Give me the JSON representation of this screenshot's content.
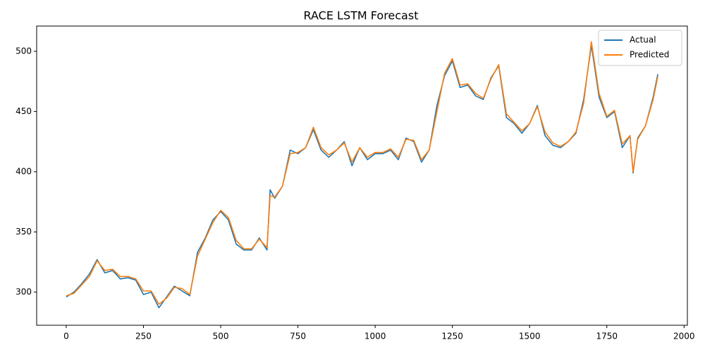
{
  "chart_data": {
    "type": "line",
    "title": "RACE LSTM Forecast",
    "x": [
      0,
      25,
      50,
      75,
      100,
      125,
      150,
      175,
      200,
      225,
      250,
      275,
      300,
      325,
      350,
      375,
      400,
      425,
      450,
      475,
      500,
      525,
      550,
      575,
      600,
      625,
      650,
      660,
      675,
      700,
      725,
      750,
      775,
      800,
      825,
      850,
      875,
      900,
      925,
      950,
      975,
      1000,
      1025,
      1050,
      1075,
      1100,
      1125,
      1150,
      1175,
      1200,
      1225,
      1250,
      1275,
      1300,
      1325,
      1350,
      1375,
      1400,
      1425,
      1450,
      1475,
      1500,
      1525,
      1550,
      1575,
      1600,
      1625,
      1650,
      1675,
      1700,
      1725,
      1750,
      1775,
      1800,
      1825,
      1835,
      1850,
      1875,
      1900,
      1915
    ],
    "series": [
      {
        "name": "Actual",
        "color": "#1f77b4",
        "values": [
          296,
          300,
          307,
          315,
          327,
          316,
          318,
          311,
          312,
          310,
          298,
          300,
          287,
          296,
          305,
          301,
          297,
          333,
          345,
          360,
          367,
          360,
          340,
          335,
          335,
          345,
          335,
          385,
          378,
          388,
          418,
          415,
          420,
          435,
          418,
          412,
          418,
          425,
          405,
          420,
          410,
          415,
          415,
          418,
          410,
          428,
          425,
          408,
          418,
          455,
          480,
          492,
          470,
          472,
          463,
          460,
          478,
          488,
          445,
          440,
          432,
          440,
          455,
          430,
          422,
          420,
          425,
          432,
          460,
          505,
          462,
          445,
          450,
          420,
          430,
          399,
          428,
          438,
          462,
          481
        ]
      },
      {
        "name": "Predicted",
        "color": "#ff7f0e",
        "values": [
          297,
          299,
          306,
          313,
          326,
          318,
          319,
          313,
          313,
          311,
          301,
          301,
          290,
          295,
          304,
          303,
          298,
          330,
          344,
          358,
          368,
          362,
          343,
          336,
          336,
          344,
          337,
          380,
          379,
          388,
          415,
          416,
          420,
          437,
          420,
          414,
          418,
          424,
          408,
          420,
          412,
          416,
          416,
          419,
          412,
          427,
          426,
          410,
          418,
          450,
          482,
          494,
          472,
          473,
          465,
          461,
          477,
          489,
          448,
          441,
          434,
          440,
          454,
          433,
          424,
          421,
          425,
          433,
          457,
          508,
          465,
          446,
          451,
          423,
          430,
          400,
          427,
          438,
          460,
          479
        ]
      }
    ],
    "xlim": [
      -95.75,
      2010.75
    ],
    "ylim": [
      272.5,
      521
    ],
    "xticks": [
      0,
      250,
      500,
      750,
      1000,
      1250,
      1500,
      1750,
      2000
    ],
    "yticks": [
      300,
      350,
      400,
      450,
      500
    ],
    "grid": false,
    "legend": "upper right"
  }
}
